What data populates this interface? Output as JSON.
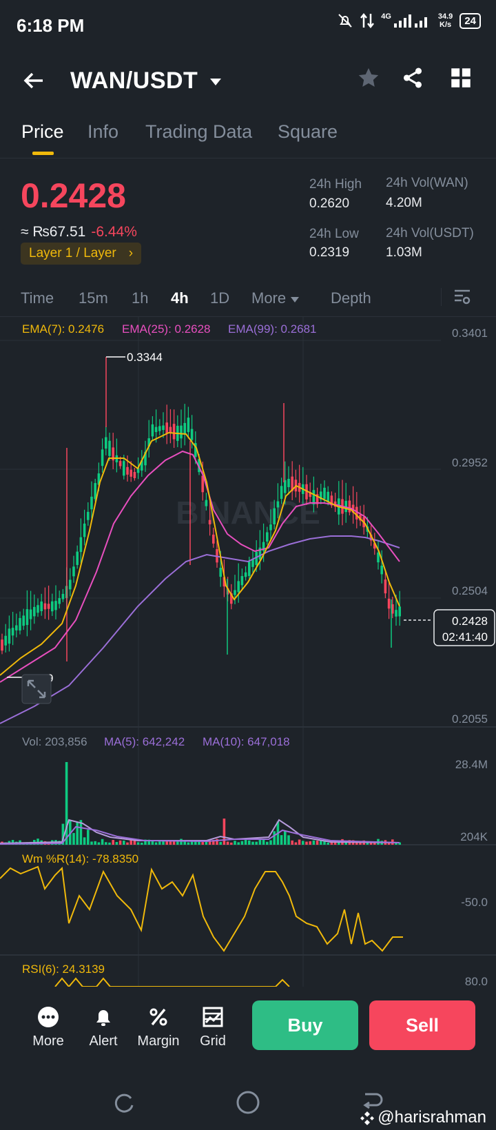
{
  "status_bar": {
    "time": "6:18 PM",
    "net_speed": "34.9\nK/s",
    "network": "4G",
    "battery": "24"
  },
  "header": {
    "pair": "WAN/USDT"
  },
  "tabs": [
    {
      "label": "Price"
    },
    {
      "label": "Info"
    },
    {
      "label": "Trading Data"
    },
    {
      "label": "Square"
    }
  ],
  "ticker": {
    "last_price": "0.2428",
    "fiat_value": "≈ ₨67.51",
    "change": "-6.44%",
    "tag": "Layer 1 / Layer",
    "high_label": "24h High",
    "high_value": "0.2620",
    "low_label": "24h Low",
    "low_value": "0.2319",
    "vol_wan_label": "24h Vol(WAN)",
    "vol_wan_value": "4.20M",
    "vol_usdt_label": "24h Vol(USDT)",
    "vol_usdt_value": "1.03M"
  },
  "intervals": [
    {
      "label": "Time"
    },
    {
      "label": "15m"
    },
    {
      "label": "1h"
    },
    {
      "label": "4h"
    },
    {
      "label": "1D"
    },
    {
      "label": "More"
    },
    {
      "label": "Depth"
    }
  ],
  "chart": {
    "ema7": "EMA(7): 0.2476",
    "ema25": "EMA(25): 0.2628",
    "ema99": "EMA(99): 0.2681",
    "y_ticks": [
      "0.3401",
      "0.2952",
      "0.2504",
      "0.2055"
    ],
    "high_marker": "0.3344",
    "low_marker": "9",
    "current_price": "0.2428",
    "countdown": "02:41:40",
    "watermark": "BINANCE",
    "vol_label": "Vol: 203,856",
    "ma5": "MA(5): 642,242",
    "ma10": "MA(10): 647,018",
    "vol_ticks": [
      "28.4M",
      "204K"
    ],
    "wr_label": "Wm %R(14): -78.8350",
    "wr_tick": "-50.0",
    "rsi_label": "RSI(6): 24.3139",
    "rsi_tick": "80.0",
    "colors": {
      "up": "#0ecb81",
      "down": "#f6465d",
      "ema7": "#f0b90b",
      "ema25": "#e84fbf",
      "ema99": "#9b6fd8"
    }
  },
  "bottom_bar": {
    "more": "More",
    "alert": "Alert",
    "margin": "Margin",
    "grid": "Grid",
    "buy": "Buy",
    "sell": "Sell"
  },
  "watermark_user": "@harisrahman"
}
